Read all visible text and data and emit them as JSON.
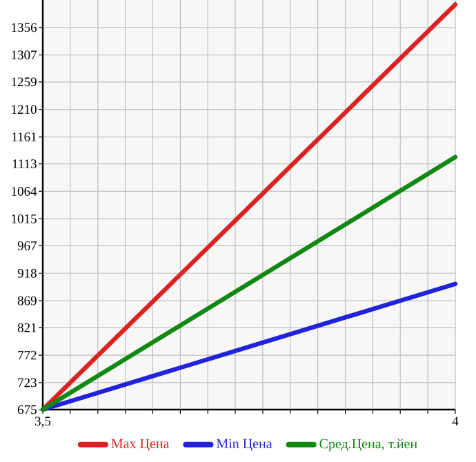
{
  "chart_data": {
    "type": "line",
    "x": [
      3.5,
      4
    ],
    "series": [
      {
        "name": "Max Цена",
        "color": "#dd2222",
        "values": [
          675,
          1397
        ]
      },
      {
        "name": "Min Цена",
        "color": "#2222dd",
        "values": [
          675,
          899
        ]
      },
      {
        "name": "Сред.Цена, т.йен",
        "color": "#118811",
        "values": [
          675,
          1125
        ]
      }
    ],
    "xlim": [
      3.5,
      4
    ],
    "xticks": [
      {
        "value": 3.5,
        "label": "3,5"
      },
      {
        "value": 3.5333,
        "label": null
      },
      {
        "value": 3.5667,
        "label": null
      },
      {
        "value": 3.6,
        "label": null
      },
      {
        "value": 3.6333,
        "label": null
      },
      {
        "value": 3.6667,
        "label": null
      },
      {
        "value": 3.7,
        "label": null
      },
      {
        "value": 3.7333,
        "label": null
      },
      {
        "value": 3.7667,
        "label": null
      },
      {
        "value": 3.8,
        "label": null
      },
      {
        "value": 3.8333,
        "label": null
      },
      {
        "value": 3.8667,
        "label": null
      },
      {
        "value": 3.9,
        "label": null
      },
      {
        "value": 3.9333,
        "label": null
      },
      {
        "value": 3.9667,
        "label": null
      },
      4
    ],
    "ylim": [
      675,
      1405
    ],
    "yticks": [
      675,
      723,
      772,
      821,
      869,
      918,
      967,
      1015,
      1064,
      1113,
      1161,
      1210,
      1259,
      1307,
      1356
    ],
    "grid": true,
    "legend": "bottom",
    "marker": "none",
    "line_style": "solid"
  }
}
